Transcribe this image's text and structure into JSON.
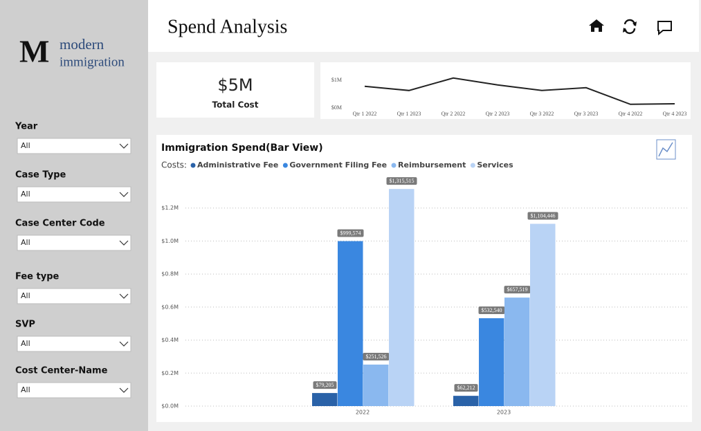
{
  "logo": {
    "mark": "M",
    "line1": "modern",
    "line2": "immigration"
  },
  "filters": [
    {
      "label": "Year",
      "value": "All"
    },
    {
      "label": "Case Type",
      "value": "All"
    },
    {
      "label": "Case Center Code",
      "value": "All"
    },
    {
      "label": "Fee type",
      "value": "All"
    },
    {
      "label": "SVP",
      "value": "All"
    },
    {
      "label": "Cost Center-Name",
      "value": "All"
    }
  ],
  "header": {
    "title": "Spend Analysis"
  },
  "kpi": {
    "value": "$5M",
    "label": "Total Cost"
  },
  "trend_chart": {
    "type": "line",
    "categories": [
      "Qtr 1 2022",
      "Qtr 1 2023",
      "Qtr 2 2022",
      "Qtr 2 2023",
      "Qtr 3 2022",
      "Qtr 3 2023",
      "Qtr 4 2022",
      "Qtr 4 2023"
    ],
    "values": [
      780000,
      630000,
      1080000,
      830000,
      630000,
      730000,
      130000,
      150000
    ],
    "color": "#222222",
    "ylim": [
      0,
      1100000
    ],
    "yticks": [
      {
        "value": 0,
        "label": "$0M"
      },
      {
        "value": 1000000,
        "label": "$1M"
      }
    ]
  },
  "bar_chart": {
    "type": "bar",
    "title": "Immigration Spend(Bar View)",
    "legend_title": "Costs:",
    "categories": [
      "2022",
      "2023"
    ],
    "series": [
      {
        "name": "Administrative Fee",
        "color": "#2a62a8",
        "values": [
          79205,
          62212
        ],
        "value_labels": [
          "$79,205",
          "$62,212"
        ]
      },
      {
        "name": "Government Filing Fee",
        "color": "#3a87e0",
        "values": [
          999574,
          532540
        ],
        "value_labels": [
          "$999,574",
          "$532,540"
        ]
      },
      {
        "name": "Reimbursement",
        "color": "#8ab8ef",
        "values": [
          251526,
          657519
        ],
        "value_labels": [
          "$251,526",
          "$657,519"
        ]
      },
      {
        "name": "Services",
        "color": "#b9d3f5",
        "values": [
          1315515,
          1104446
        ],
        "value_labels": [
          "$1,315,515",
          "$1,104,446"
        ]
      }
    ],
    "ylim": [
      0,
      1400000
    ],
    "yticks": [
      {
        "value": 0,
        "label": "$0.0M"
      },
      {
        "value": 200000,
        "label": "$0.2M"
      },
      {
        "value": 400000,
        "label": "$0.4M"
      },
      {
        "value": 600000,
        "label": "$0.6M"
      },
      {
        "value": 800000,
        "label": "$0.8M"
      },
      {
        "value": 1000000,
        "label": "$1.0M"
      },
      {
        "value": 1200000,
        "label": "$1.2M"
      }
    ],
    "grid": true
  }
}
